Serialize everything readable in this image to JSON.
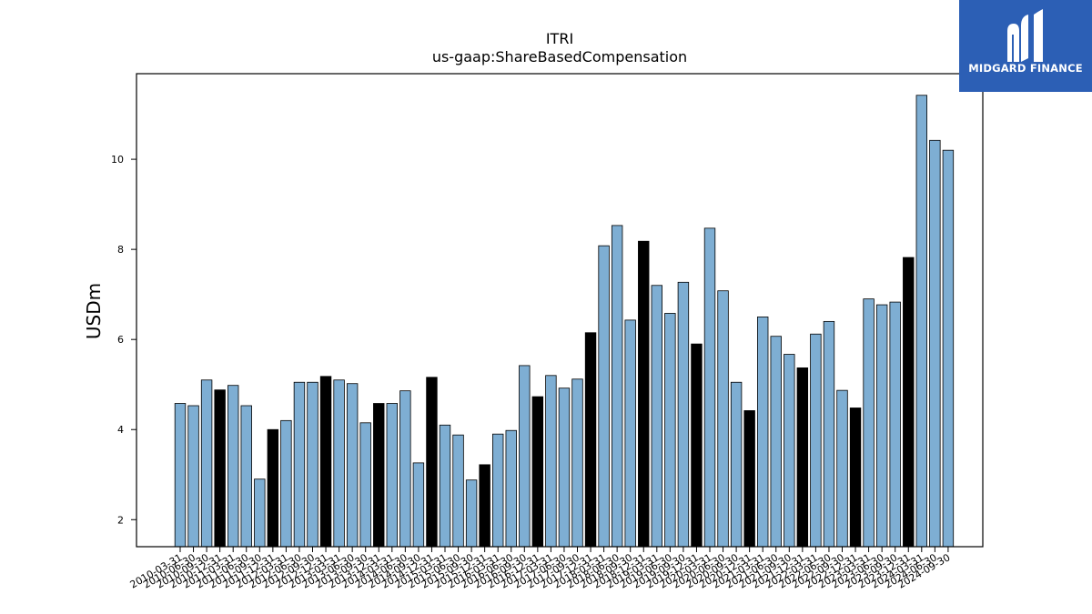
{
  "logo": {
    "text": "MIDGARD FINANCE",
    "bg": "#2c5fb5"
  },
  "chart_data": {
    "type": "bar",
    "title": "ITRI",
    "subtitle": "us-gaap:ShareBasedCompensation",
    "ylabel": "USDm",
    "xlabel": "",
    "ylim": [
      1.4,
      11.9
    ],
    "yticks": [
      2,
      4,
      6,
      8,
      10
    ],
    "grid": false,
    "colors": {
      "quarter": "#7eaed3",
      "fiscal_q4": "#000000"
    },
    "categories": [
      "2010-03-31",
      "2010-06-30",
      "2010-09-30",
      "2010-12-31",
      "2011-03-31",
      "2011-06-30",
      "2011-09-30",
      "2011-12-31",
      "2012-03-31",
      "2012-06-30",
      "2012-09-30",
      "2012-12-31",
      "2013-03-31",
      "2013-06-30",
      "2013-09-30",
      "2013-12-31",
      "2014-03-31",
      "2014-06-30",
      "2014-09-30",
      "2014-12-31",
      "2015-03-31",
      "2015-06-30",
      "2015-09-30",
      "2015-12-31",
      "2016-03-31",
      "2016-06-30",
      "2016-09-30",
      "2016-12-31",
      "2017-03-31",
      "2017-06-30",
      "2017-09-30",
      "2017-12-31",
      "2018-03-31",
      "2018-06-30",
      "2018-09-30",
      "2018-12-31",
      "2019-03-31",
      "2019-06-30",
      "2019-09-30",
      "2019-12-31",
      "2020-03-31",
      "2020-06-30",
      "2020-09-30",
      "2020-12-31",
      "2021-03-31",
      "2021-06-30",
      "2021-09-30",
      "2021-12-31",
      "2022-03-31",
      "2022-06-30",
      "2022-09-30",
      "2022-12-31",
      "2023-03-31",
      "2023-06-30",
      "2023-09-30",
      "2023-12-31",
      "2024-03-31",
      "2024-06-30",
      "2024-09-30"
    ],
    "values": [
      4.58,
      4.53,
      5.1,
      4.88,
      4.98,
      4.53,
      2.9,
      4.0,
      4.2,
      5.05,
      5.05,
      5.18,
      5.1,
      5.02,
      4.15,
      4.58,
      4.58,
      4.86,
      3.26,
      5.16,
      4.1,
      3.88,
      2.88,
      3.22,
      3.9,
      3.98,
      5.42,
      4.73,
      5.2,
      4.92,
      5.12,
      6.15,
      8.08,
      8.53,
      6.43,
      8.18,
      7.2,
      6.58,
      7.27,
      5.9,
      8.47,
      7.08,
      5.05,
      4.42,
      6.5,
      6.07,
      5.67,
      5.37,
      6.12,
      6.4,
      4.87,
      4.48,
      6.9,
      6.77,
      6.83,
      7.82,
      11.42,
      10.42,
      10.2
    ],
    "highlight": [
      0,
      0,
      0,
      1,
      0,
      0,
      0,
      1,
      0,
      0,
      0,
      1,
      0,
      0,
      0,
      1,
      0,
      0,
      0,
      1,
      0,
      0,
      0,
      1,
      0,
      0,
      0,
      1,
      0,
      0,
      0,
      1,
      0,
      0,
      0,
      1,
      0,
      0,
      0,
      1,
      0,
      0,
      0,
      1,
      0,
      0,
      0,
      1,
      0,
      0,
      0,
      1,
      0,
      0,
      0,
      1,
      0,
      0,
      0
    ]
  }
}
